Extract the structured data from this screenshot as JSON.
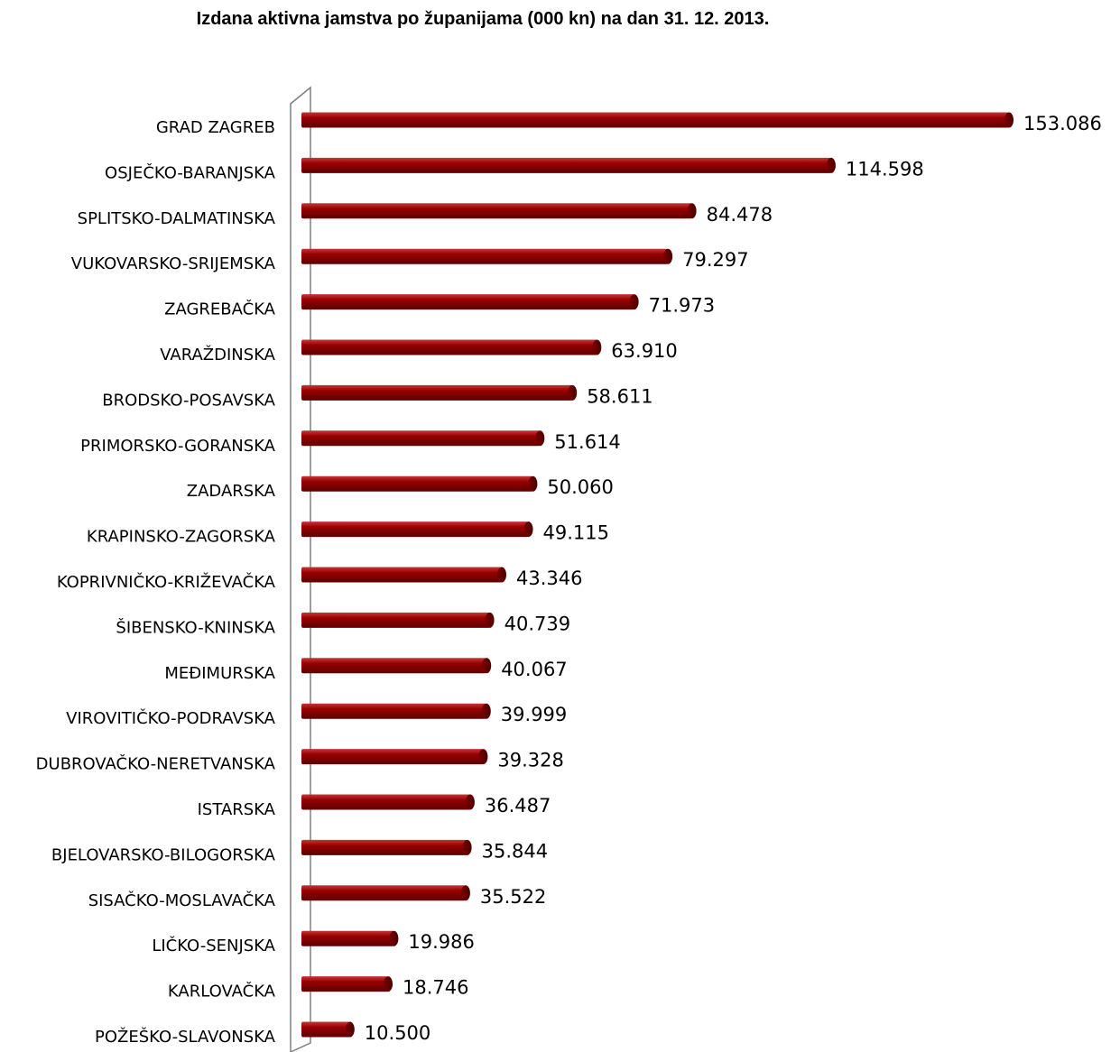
{
  "chart_data": {
    "type": "bar",
    "orientation": "horizontal",
    "title": "Izdana aktivna jamstva po županijama (000 kn) na dan 31. 12. 2013.",
    "categories": [
      "GRAD ZAGREB",
      "OSJEČKO-BARANJSKA",
      "SPLITSKO-DALMATINSKA",
      "VUKOVARSKO-SRIJEMSKA",
      "ZAGREBAČKA",
      "VARAŽDINSKA",
      "BRODSKO-POSAVSKA",
      "PRIMORSKO-GORANSKA",
      "ZADARSKA",
      "KRAPINSKO-ZAGORSKA",
      "KOPRIVNIČKO-KRIŽEVAČKA",
      "ŠIBENSKO-KNINSKA",
      "MEĐIMURSKA",
      "VIROVITIČKO-PODRAVSKA",
      "DUBROVAČKO-NERETVANSKA",
      "ISTARSKA",
      "BJELOVARSKO-BILOGORSKA",
      "SISAČKO-MOSLAVAČKA",
      "LIČKO-SENJSKA",
      "KARLOVAČKA",
      "POŽEŠKO-SLAVONSKA"
    ],
    "values": [
      153086,
      114598,
      84478,
      79297,
      71973,
      63910,
      58611,
      51614,
      50060,
      49115,
      43346,
      40739,
      40067,
      39999,
      39328,
      36487,
      35844,
      35522,
      19986,
      18746,
      10500
    ],
    "value_labels": [
      "153.086",
      "114.598",
      "84.478",
      "79.297",
      "71.973",
      "63.910",
      "58.611",
      "51.614",
      "50.060",
      "49.115",
      "43.346",
      "40.739",
      "40.067",
      "39.999",
      "39.328",
      "36.487",
      "35.844",
      "35.522",
      "19.986",
      "18.746",
      "10.500"
    ],
    "xlim": [
      0,
      153086
    ],
    "grid": false,
    "legend": "none",
    "colors": {
      "bar_main": "#990000",
      "bar_dark": "#5c0000",
      "bar_light": "#c23a3a",
      "axis_wall": "#808080"
    }
  }
}
